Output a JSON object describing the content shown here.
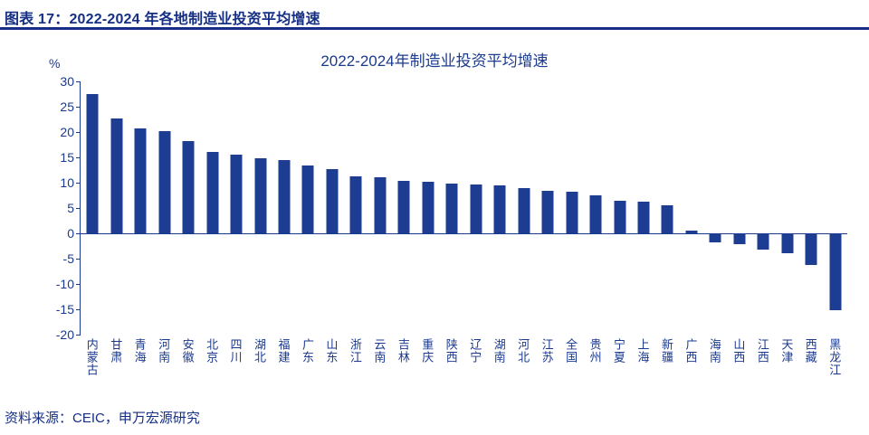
{
  "header": {
    "title": "图表 17：2022-2024 年各地制造业投资平均增速"
  },
  "chart_data": {
    "type": "bar",
    "title": "2022-2024年制造业投资平均增速",
    "ylabel": "%",
    "xlabel": "",
    "ylim": [
      -20,
      30
    ],
    "yticks": [
      30,
      25,
      20,
      15,
      10,
      5,
      0,
      -5,
      -10,
      -15,
      -20
    ],
    "grid": false,
    "legend_position": "none",
    "bar_color": "#1c3d91",
    "text_color": "#1b3a8f",
    "categories": [
      "内蒙古",
      "甘肃",
      "青海",
      "河南",
      "安徽",
      "北京",
      "四川",
      "湖北",
      "福建",
      "广东",
      "山东",
      "浙江",
      "云南",
      "吉林",
      "重庆",
      "陕西",
      "辽宁",
      "湖南",
      "河北",
      "江苏",
      "全国",
      "贵州",
      "宁夏",
      "上海",
      "新疆",
      "广西",
      "海南",
      "山西",
      "江西",
      "天津",
      "西藏",
      "黑龙江"
    ],
    "values": [
      27.5,
      22.7,
      20.7,
      20.2,
      18.2,
      16.0,
      15.5,
      14.9,
      14.5,
      13.4,
      12.6,
      11.3,
      11.0,
      10.4,
      10.1,
      9.8,
      9.6,
      9.4,
      9.0,
      8.4,
      8.2,
      7.5,
      6.4,
      6.2,
      5.5,
      0.6,
      -1.8,
      -2.1,
      -3.2,
      -3.9,
      -6.3,
      -15.1
    ]
  },
  "footer": {
    "source": "资料来源：CEIC，申万宏源研究"
  }
}
